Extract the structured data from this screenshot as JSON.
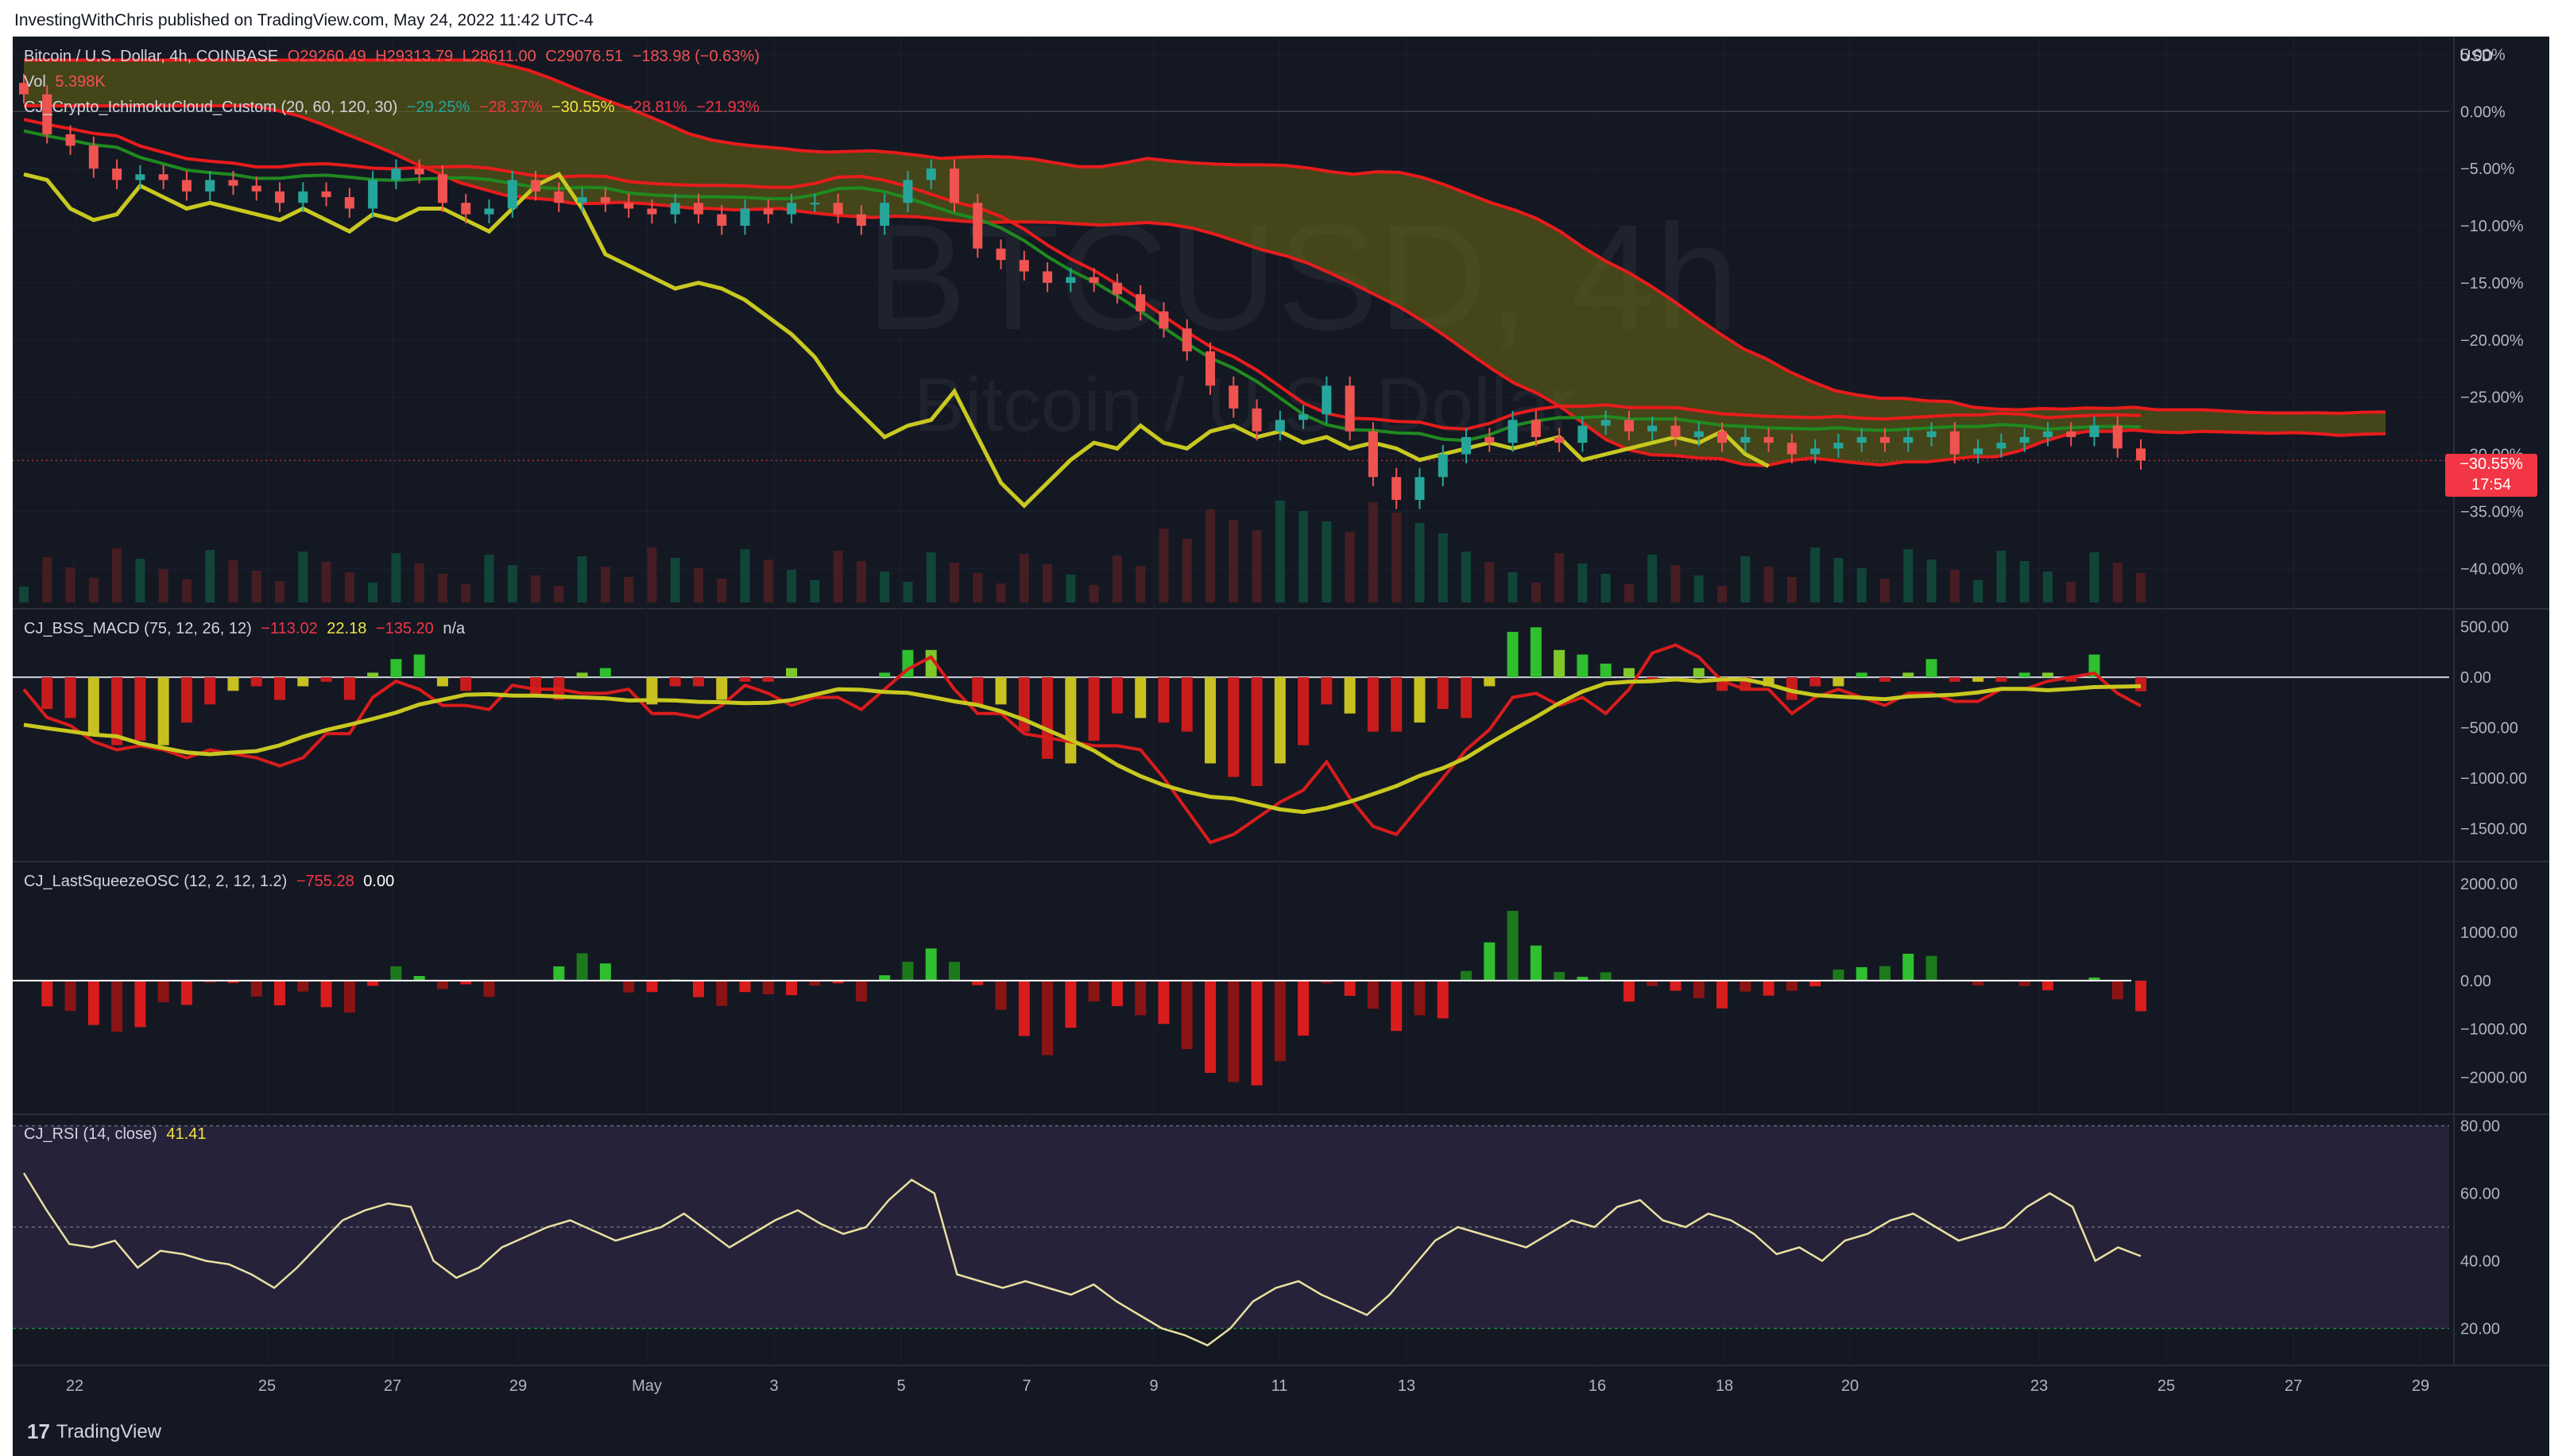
{
  "publish_line": "InvestingWithChris published on TradingView.com, May 24, 2022 11:42 UTC-4",
  "footer": {
    "logo_mark": "17",
    "logo_text": "TradingView"
  },
  "watermark": {
    "symbol": "BTCUSD, 4h",
    "name": "Bitcoin / U.S. Dollar"
  },
  "colors": {
    "background": "#141823",
    "grid": "#1f2330",
    "up": "#26a69a",
    "down": "#ef5350",
    "cloud_red": "#e81c1c",
    "cloud_green": "#1f8a1f",
    "cloud_fill": "#6b6b12",
    "lagging": "#c8c820",
    "macd_red": "#d91c1c",
    "macd_signal": "#c8c820",
    "rsi_line": "#e8e0a0",
    "rsi_band": "#2a2540"
  },
  "header": {
    "symbol": "Bitcoin / U.S. Dollar, 4h, COINBASE",
    "open": "O29260.49",
    "high": "H29313.79",
    "low": "L28611.00",
    "close": "C29076.51",
    "change": "−183.98 (−0.63%)",
    "vol_label": "Vol",
    "vol_value": "5.398K",
    "ichimoku_label": "CJ_Crypto_IchimokuCloud_Custom (20, 60, 120, 30)",
    "ichimoku_values": [
      "−29.25%",
      "−28.37%",
      "−30.55%",
      "−28.81%",
      "−21.93%"
    ]
  },
  "price_axis": {
    "unit": "USD",
    "ticks": [
      "5.00%",
      "0.00%",
      "−5.00%",
      "−10.00%",
      "−15.00%",
      "−20.00%",
      "−25.00%",
      "−30.00%",
      "−35.00%",
      "−40.00%"
    ],
    "tick_values": [
      5,
      0,
      -5,
      -10,
      -15,
      -20,
      -25,
      -30,
      -35,
      -40
    ],
    "current_label": "−30.55%",
    "current_time": "17:54",
    "current_value": -30.55
  },
  "macd_panel": {
    "label": "CJ_BSS_MACD (75, 12, 26, 12)",
    "values": [
      "−113.02",
      "22.18",
      "−135.20",
      "n/a"
    ],
    "ticks": [
      "500.00",
      "0.00",
      "−500.00",
      "−1000.00",
      "−1500.00"
    ],
    "tick_values": [
      500,
      0,
      -500,
      -1000,
      -1500
    ]
  },
  "squeeze_panel": {
    "label": "CJ_LastSqueezeOSC (12, 2, 12, 1.2)",
    "values": [
      "−755.28",
      "0.00"
    ],
    "ticks": [
      "2000.00",
      "1000.00",
      "0.00",
      "−1000.00",
      "−2000.00"
    ],
    "tick_values": [
      2000,
      1000,
      0,
      -1000,
      -2000
    ]
  },
  "rsi_panel": {
    "label": "CJ_RSI (14, close)",
    "value": "41.41",
    "ticks": [
      "80.00",
      "60.00",
      "40.00",
      "20.00"
    ],
    "tick_values": [
      80,
      60,
      40,
      20
    ]
  },
  "time_axis": {
    "labels": [
      "22",
      "25",
      "27",
      "29",
      "May",
      "3",
      "5",
      "7",
      "9",
      "11",
      "13",
      "16",
      "18",
      "20",
      "23",
      "25",
      "27",
      "29"
    ]
  },
  "chart_data": [
    {
      "type": "line",
      "subtype": "candlestick",
      "ylabel": "USD",
      "ylim": [
        -42,
        6
      ],
      "x_range": [
        "Apr 21",
        "May 30"
      ],
      "series": [
        {
          "values_close_pct": [
            1.5,
            -2,
            -3,
            -5,
            -6,
            -5.5,
            -6,
            -7,
            -6,
            -6.5,
            -7,
            -8,
            -7,
            -7.5,
            -8.5,
            -6,
            -5,
            -5.5,
            -8,
            -9,
            -8.5,
            -6,
            -7,
            -8,
            -7.5,
            -8,
            -8.5,
            -9,
            -8,
            -9,
            -10,
            -8.5,
            -9,
            -8,
            -8,
            -9,
            -10,
            -8,
            -6,
            -5,
            -8,
            -12,
            -13,
            -14,
            -15,
            -14.5,
            -15,
            -16,
            -17.5,
            -19,
            -21,
            -24,
            -26,
            -28,
            -27,
            -26.5,
            -24,
            -28,
            -32,
            -34,
            -32,
            -30,
            -28.5,
            -29,
            -27,
            -28.5,
            -29,
            -27.5,
            -27,
            -28,
            -27.5,
            -28.5,
            -28,
            -29,
            -28.5,
            -29,
            -30,
            -29.5,
            -29,
            -28.5,
            -29,
            -28.5,
            -28,
            -30,
            -29.5,
            -29,
            -28.5,
            -28,
            -28.5,
            -27.5,
            -29.5,
            -30.55
          ]
        }
      ]
    },
    {
      "type": "bar",
      "name_shown": "CJ_BSS_MACD",
      "ylim": [
        -1750,
        600
      ]
    },
    {
      "type": "bar",
      "name_shown": "CJ_LastSqueezeOSC",
      "ylim": [
        -2600,
        2300
      ]
    },
    {
      "type": "line",
      "name_shown": "CJ_RSI",
      "ylim": [
        10,
        82
      ],
      "values": [
        66,
        55,
        45,
        44,
        46,
        38,
        43,
        42,
        40,
        39,
        36,
        32,
        38,
        45,
        52,
        55,
        57,
        56,
        40,
        35,
        38,
        44,
        47,
        50,
        52,
        49,
        46,
        48,
        50,
        54,
        49,
        44,
        48,
        52,
        55,
        51,
        48,
        50,
        58,
        64,
        60,
        36,
        34,
        32,
        34,
        32,
        30,
        33,
        28,
        24,
        20,
        18,
        15,
        20,
        28,
        32,
        34,
        30,
        27,
        24,
        30,
        38,
        46,
        50,
        48,
        46,
        44,
        48,
        52,
        50,
        56,
        58,
        52,
        50,
        54,
        52,
        48,
        42,
        44,
        40,
        46,
        48,
        52,
        54,
        50,
        46,
        48,
        50,
        56,
        60,
        56,
        40,
        44,
        41.41
      ]
    }
  ]
}
